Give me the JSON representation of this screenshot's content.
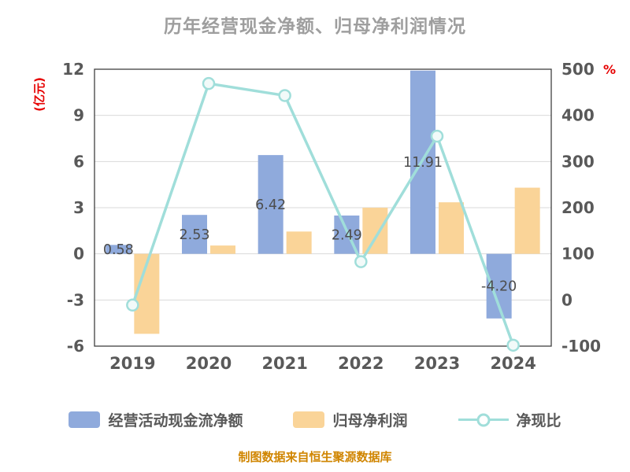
{
  "chart_data": {
    "type": "bar+line",
    "title": "历年经营现金净额、归母净利润情况",
    "categories": [
      "2019",
      "2020",
      "2021",
      "2022",
      "2023",
      "2024"
    ],
    "series": [
      {
        "name": "经营活动现金流净额",
        "type": "bar",
        "axis": "left",
        "color": "#8FAADC",
        "values": [
          0.58,
          2.53,
          6.42,
          2.49,
          11.91,
          -4.2
        ],
        "labels": [
          "0.58",
          "2.53",
          "6.42",
          "2.49",
          "11.91",
          "-4.20"
        ]
      },
      {
        "name": "归母净利润",
        "type": "bar",
        "axis": "left",
        "color": "#FAD498",
        "values": [
          -5.2,
          0.54,
          1.45,
          3.0,
          3.35,
          4.3
        ]
      },
      {
        "name": "净现比",
        "type": "line",
        "axis": "right",
        "color": "#A0DEDA",
        "values": [
          -11,
          469,
          443,
          83,
          355,
          -98
        ]
      }
    ],
    "left_axis": {
      "unit": "(亿元)",
      "unit_color": "#E60000",
      "min": -6,
      "max": 12,
      "ticks": [
        12,
        9,
        6,
        3,
        0,
        -3,
        -6
      ]
    },
    "right_axis": {
      "unit": "%",
      "unit_color": "#E60000",
      "min": -100,
      "max": 500,
      "ticks": [
        500,
        400,
        300,
        200,
        100,
        0,
        -100
      ]
    },
    "grid": true,
    "legend_position": "bottom",
    "source": "制图数据来自恒生聚源数据库",
    "colors": {
      "title": "#9E9E9E",
      "axis_text": "#595959",
      "bar_label": "#4D4D4D",
      "grid": "#D9D9D9",
      "border": "#404040",
      "marker_fill": "#F2FAF9",
      "source_text": "#D08500"
    }
  }
}
